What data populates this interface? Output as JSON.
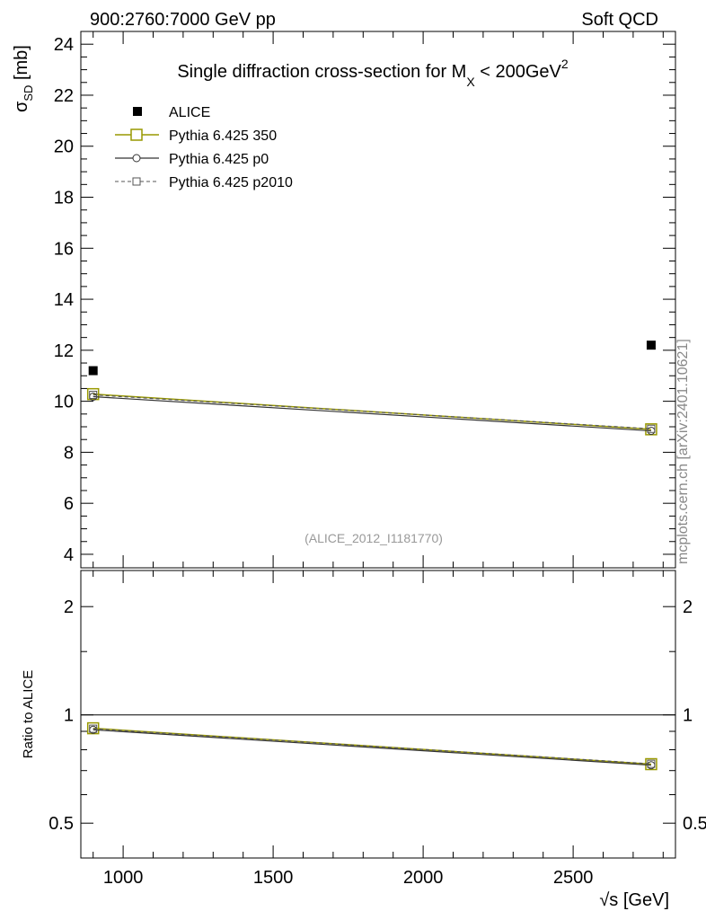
{
  "header": {
    "left": "900:2760:7000 GeV pp",
    "right": "Soft QCD"
  },
  "side_label": "mcplots.cern.ch [arXiv:2401.10621]",
  "watermark": "(ALICE_2012_I1181770)",
  "chart_data": {
    "type": "line",
    "title": "Single diffraction cross-section for M_X < 200GeV^2",
    "title_parts": {
      "pre": "Single diffraction cross-section for M",
      "sub": "X",
      "mid": " < 200GeV",
      "sup": "2"
    },
    "xlabel": "√s [GeV]",
    "ylabel": "σ_SD [mb]",
    "ylabel_parts": {
      "sym": "σ",
      "sub": "SD",
      "unit": " [mb]"
    },
    "xlim": [
      859,
      2841
    ],
    "ylim": [
      3.47,
      24.5
    ],
    "xticks": [
      1000,
      1500,
      2000,
      2500
    ],
    "yticks": [
      4,
      6,
      8,
      10,
      12,
      14,
      16,
      18,
      20,
      22,
      24
    ],
    "ratio": {
      "ylabel": "Ratio to ALICE",
      "ylim": [
        0.4,
        2.52
      ],
      "scale": "log",
      "yticks": [
        0.5,
        1,
        2
      ],
      "ytick_labels": [
        "0.5",
        "1",
        "2"
      ]
    },
    "x": [
      900,
      2760
    ],
    "series": [
      {
        "name": "ALICE",
        "values": [
          11.2,
          12.2
        ],
        "color": "#000000",
        "style": "marker-square-filled"
      },
      {
        "name": "Pythia 6.425 350",
        "values": [
          10.28,
          8.9
        ],
        "color": "#999900",
        "style": "solid-square"
      },
      {
        "name": "Pythia 6.425 p0",
        "values": [
          10.18,
          8.84
        ],
        "color": "#333333",
        "style": "solid-circle"
      },
      {
        "name": "Pythia 6.425 p2010",
        "values": [
          10.25,
          8.92
        ],
        "color": "#555555",
        "style": "dashed-square"
      }
    ],
    "legend_placement": "top-left"
  }
}
